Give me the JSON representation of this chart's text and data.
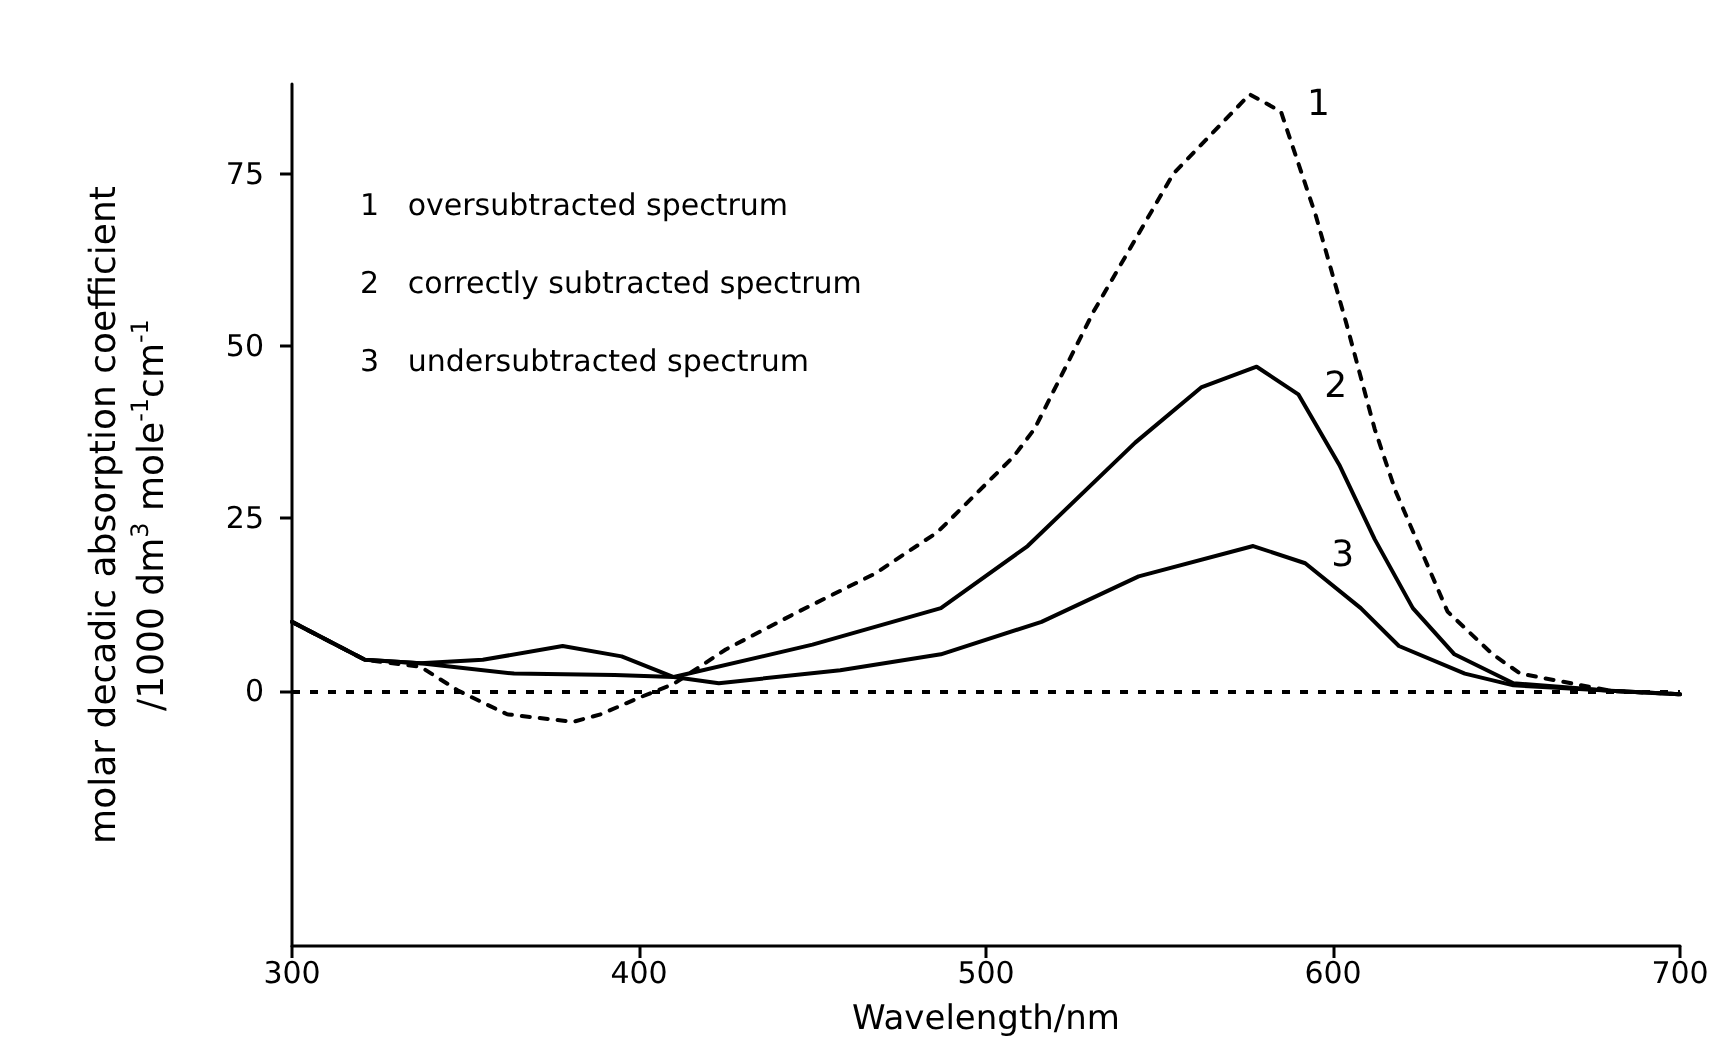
{
  "chart_data": {
    "type": "line",
    "xlabel": "Wavelength/nm",
    "ylabel": "molar decadic absorption coefficient\n/1000 dm$^{3}$ mole$^{-1}$cm$^{-1}$",
    "annotations": [
      "1   oversubtracted spectrum",
      "2   correctly subtracted spectrum",
      "3   undersubtracted spectrum"
    ],
    "xlim": [
      300,
      700
    ],
    "xticks": [
      300,
      400,
      500,
      600,
      700
    ],
    "ylim": [
      -37,
      88
    ],
    "yticks": [
      0,
      25,
      50,
      75
    ],
    "grid": false,
    "legend": false,
    "ref_lines": [
      {
        "axis": "y",
        "value": 0,
        "label": null,
        "color": "#000000",
        "line_style": "dashed"
      }
    ],
    "series": [
      {
        "name": "1",
        "color": "#000000",
        "line_style": "dashed",
        "x": [
          300,
          321,
          337,
          348,
          362,
          381,
          389,
          400,
          410,
          425,
          446,
          468,
          486,
          508,
          514,
          531,
          554,
          576,
          585,
          595,
          604,
          612,
          618,
          633,
          646,
          654,
          680,
          700
        ],
        "values": [
          10,
          4.5,
          3.5,
          0,
          -3.4,
          -4.5,
          -3.4,
          -1,
          1,
          6,
          11.5,
          17,
          23,
          34,
          38,
          55,
          75,
          86.5,
          84,
          69,
          53,
          38,
          29,
          11.5,
          5.3,
          2.5,
          0,
          -0.5
        ]
      },
      {
        "name": "2",
        "color": "#000000",
        "line_style": "solid",
        "x": [
          300,
          321,
          337,
          364,
          393,
          410,
          450,
          487,
          512,
          543,
          562,
          578,
          590,
          602,
          612,
          623,
          635,
          652,
          680,
          700
        ],
        "values": [
          10,
          4.5,
          4,
          2.5,
          2.3,
          2,
          6.7,
          12,
          21,
          36,
          44,
          47,
          43,
          32.6,
          22,
          12,
          5.3,
          1.1,
          0,
          -0.5
        ]
      },
      {
        "name": "3",
        "color": "#000000",
        "line_style": "solid",
        "x": [
          300,
          321,
          337,
          355,
          378,
          395,
          410,
          423,
          458,
          487,
          516,
          544,
          577,
          592,
          608,
          619,
          638,
          652,
          680,
          700
        ],
        "values": [
          10,
          4.5,
          4,
          4.5,
          6.5,
          5,
          2,
          1.1,
          3,
          5.3,
          10,
          16.6,
          21,
          18.5,
          12,
          6.5,
          2.5,
          0.8,
          0,
          -0.5
        ]
      }
    ]
  }
}
